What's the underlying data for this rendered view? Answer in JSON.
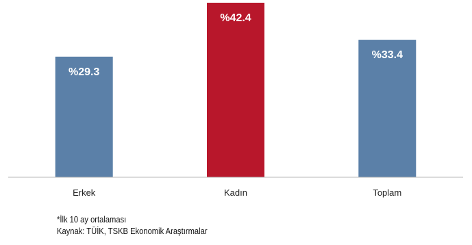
{
  "chart_data": {
    "type": "bar",
    "categories": [
      "Erkek",
      "Kadın",
      "Toplam"
    ],
    "values": [
      29.3,
      42.4,
      33.4
    ],
    "value_labels": [
      "%29.3",
      "%42.4",
      "%33.4"
    ],
    "colors": [
      "#5b80a8",
      "#b8172b",
      "#5b80a8"
    ],
    "ylim": [
      0,
      42.4
    ],
    "grid": false,
    "legend": "none"
  },
  "notes": {
    "footnote": "*İlk 10 ay ortalaması",
    "source": "Kaynak: TÜİK, TSKB Ekonomik Araştırmalar"
  }
}
